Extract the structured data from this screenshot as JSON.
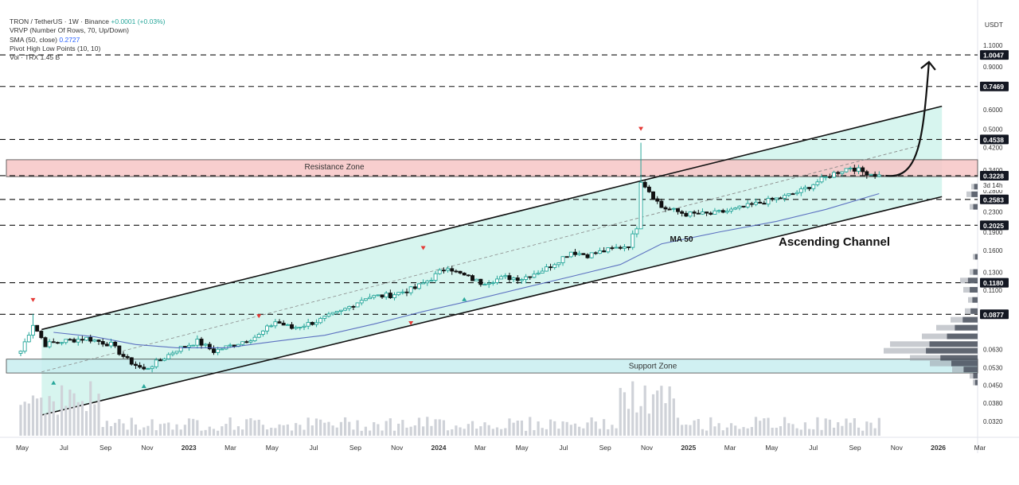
{
  "legend": {
    "symbol": "TRON / TetherUS · 1W · Binance",
    "change": "+0.0001 (+0.03%)",
    "vrvp": "VRVP (Number Of Rows, 70, Up/Down)",
    "sma": "SMA (50, close)",
    "sma_value": "0.2727",
    "pivot": "Pivot High Low Points (10, 10)",
    "vol": "Vol · TRX  1.45 B"
  },
  "axis": {
    "currency": "USDT"
  },
  "colors": {
    "up": "#26a69a",
    "down": "#111111",
    "channel_fill": "#c9f1ea",
    "resistance_fill": "#f7c6c6",
    "support_fill": "#c8eef0",
    "sma": "#3f51b5"
  },
  "chart_data": {
    "type": "candlestick",
    "title": "TRON / TetherUS · 1W · Binance",
    "y_scale": "log",
    "ylim": [
      0.028,
      1.45
    ],
    "x_ticks": [
      "May",
      "Jul",
      "Sep",
      "Nov",
      "2023",
      "Mar",
      "May",
      "Jul",
      "Sep",
      "Nov",
      "2024",
      "Mar",
      "May",
      "Jul",
      "Sep",
      "Nov",
      "2025",
      "Mar",
      "May",
      "Jul",
      "Sep",
      "Nov",
      "2026",
      "Mar"
    ],
    "y_ticks": [
      "1.1000",
      "0.9000",
      "0.6000",
      "0.5000",
      "0.4200",
      "0.3400",
      "0.2800",
      "0.2300",
      "0.1900",
      "0.1600",
      "0.1300",
      "0.1100",
      "0.0630",
      "0.0530",
      "0.0450",
      "0.0380",
      "0.0320"
    ],
    "price_labels": [
      {
        "value": 1.0047,
        "text": "1.0047",
        "style": "dark"
      },
      {
        "value": 0.7469,
        "text": "0.7469",
        "style": "dark"
      },
      {
        "value": 0.4538,
        "text": "0.4538",
        "style": "dark"
      },
      {
        "value": 0.3228,
        "text": "0.3228",
        "style": "dark"
      },
      {
        "value": 0.2583,
        "text": "0.2583",
        "style": "dark"
      },
      {
        "value": 0.2025,
        "text": "0.2025",
        "style": "dark"
      },
      {
        "value": 0.118,
        "text": "0.1180",
        "style": "dark"
      },
      {
        "value": 0.0877,
        "text": "0.0877",
        "style": "dark"
      }
    ],
    "countdown": "3d 14h",
    "resistance_zone": {
      "low": 0.32,
      "high": 0.375,
      "label": "Resistance Zone"
    },
    "support_zone": {
      "low": 0.0505,
      "high": 0.0575,
      "label": "Support Zone"
    },
    "annotations": {
      "channel": "Ascending Channel",
      "ma": "MA 50"
    },
    "series": [
      {
        "name": "TRX/USDT",
        "ohlc_samples": [
          [
            "2022-05",
            0.061,
            0.085,
            0.06,
            0.08
          ],
          [
            "2022-06",
            0.079,
            0.081,
            0.062,
            0.067
          ],
          [
            "2022-08",
            0.068,
            0.071,
            0.066,
            0.069
          ],
          [
            "2022-11",
            0.061,
            0.063,
            0.051,
            0.054
          ],
          [
            "2023-01",
            0.056,
            0.06,
            0.054,
            0.059
          ],
          [
            "2023-02",
            0.068,
            0.071,
            0.064,
            0.066
          ],
          [
            "2023-07",
            0.079,
            0.085,
            0.076,
            0.08
          ],
          [
            "2023-11",
            0.104,
            0.108,
            0.101,
            0.104
          ],
          [
            "2024-03",
            0.142,
            0.146,
            0.129,
            0.131
          ],
          [
            "2024-05",
            0.124,
            0.127,
            0.119,
            0.122
          ],
          [
            "2024-09",
            0.152,
            0.157,
            0.15,
            0.155
          ],
          [
            "2024-12",
            0.32,
            0.44,
            0.23,
            0.3
          ],
          [
            "2025-03",
            0.226,
            0.232,
            0.218,
            0.225
          ],
          [
            "2025-06",
            0.272,
            0.28,
            0.262,
            0.275
          ],
          [
            "2025-09",
            0.34,
            0.355,
            0.325,
            0.338
          ],
          [
            "2025-10",
            0.325,
            0.33,
            0.3,
            0.3228
          ]
        ]
      },
      {
        "name": "SMA (50, close)",
        "last": 0.2727
      }
    ]
  }
}
